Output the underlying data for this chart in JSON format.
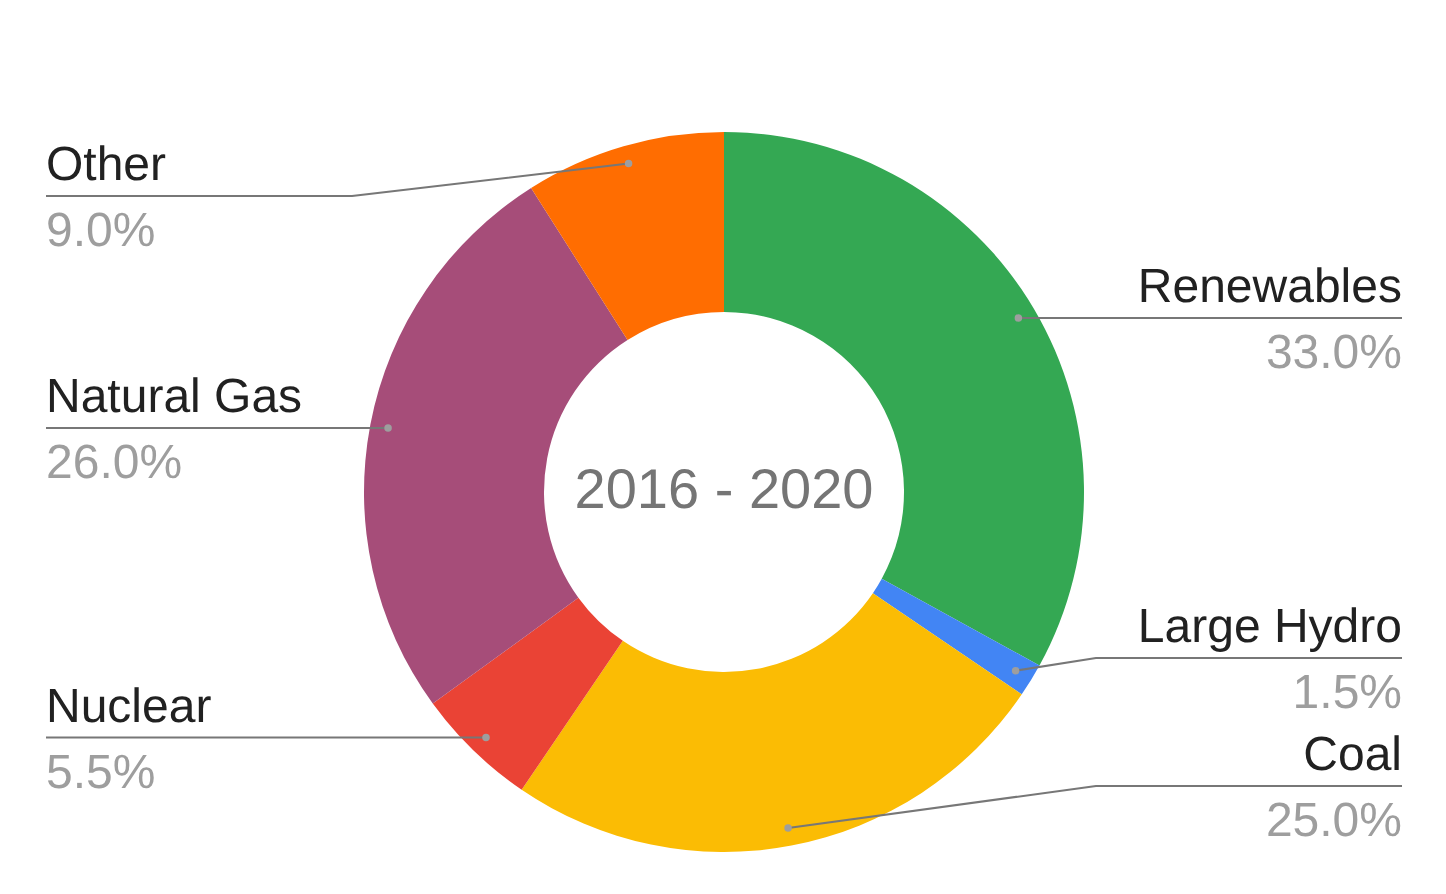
{
  "chart_data": {
    "type": "donut",
    "categories": [
      "Renewables",
      "Large Hydro",
      "Coal",
      "Nuclear",
      "Natural Gas",
      "Other"
    ],
    "values": [
      33.0,
      1.5,
      25.0,
      5.5,
      26.0,
      9.0
    ],
    "colors": [
      "#34a853",
      "#4285f4",
      "#fbbc04",
      "#ea4335",
      "#a64d79",
      "#ff6d01"
    ],
    "value_labels": [
      "33.0%",
      "1.5%",
      "25.0%",
      "5.5%",
      "26.0%",
      "9.0%"
    ],
    "annotations": [
      "2016 - 2020"
    ]
  }
}
